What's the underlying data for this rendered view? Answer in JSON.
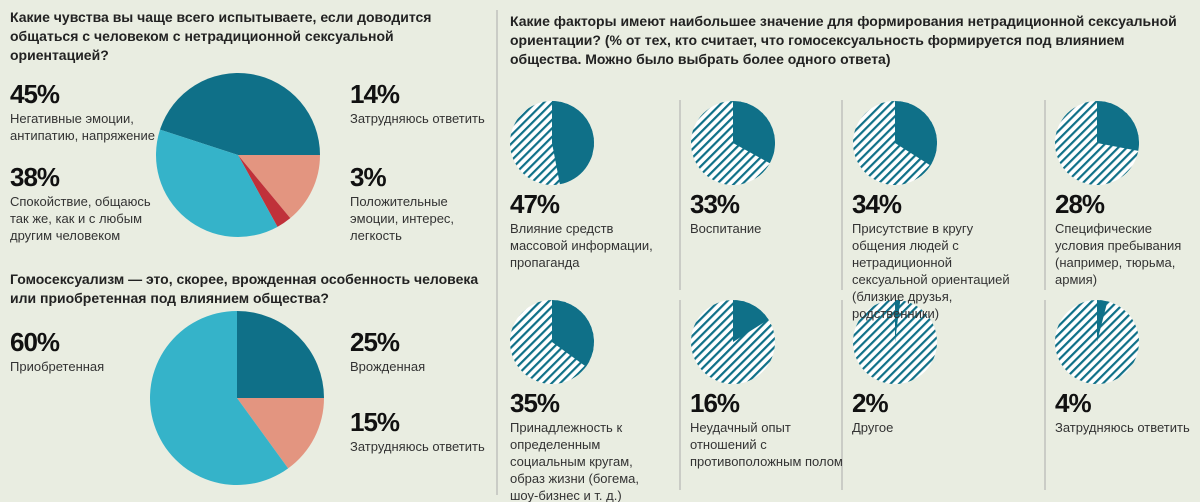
{
  "chart_data": [
    {
      "type": "pie",
      "title": "Какие чувства вы чаще всего испытываете, если доводится общаться с человеком с нетрадиционной сексуальной ориентацией?",
      "categories": [
        "Негативные эмоции, антипатию, напряжение",
        "Затрудняюсь ответить",
        "Положительные эмоции, интерес, легкость",
        "Спокойствие, общаюсь так же, как и с любым другим человеком"
      ],
      "values": [
        45,
        14,
        3,
        38
      ],
      "value_labels": [
        "45%",
        "14%",
        "3%",
        "38%"
      ],
      "colors": [
        "#0f7088",
        "#e39580",
        "#c0313a",
        "#35b3c9"
      ]
    },
    {
      "type": "pie",
      "title": "Гомосексуализм — это, скорее, врожденная особенность человека или приобретенная под влиянием общества?",
      "categories": [
        "Врожденная",
        "Затрудняюсь ответить",
        "Приобретенная"
      ],
      "values": [
        25,
        15,
        60
      ],
      "value_labels": [
        "25%",
        "15%",
        "60%"
      ],
      "colors": [
        "#0f7088",
        "#e39580",
        "#35b3c9"
      ]
    },
    {
      "type": "pie_grid",
      "title": "Какие факторы имеют наибольшее значение для формирования нетрадиционной сексуальной ориентации? (% от тех, кто считает, что гомосексуальность формируется под влиянием общества. Можно было выбрать более одного ответа)",
      "categories": [
        "Влияние средств массовой информации, пропаганда",
        "Воспитание",
        "Присутствие в кругу общения людей с нетрадиционной сексуальной ориентацией (близкие друзья, родственники)",
        "Специфические условия пребывания (например, тюрьма, армия)",
        "Принадлежность к определенным социальным кругам, образ жизни (богема, шоу-бизнес и т. д.)",
        "Неудачный опыт отношений с противоположным полом",
        "Другое",
        "Затрудняюсь ответить"
      ],
      "values": [
        47,
        33,
        34,
        28,
        35,
        16,
        2,
        4
      ],
      "value_labels": [
        "47%",
        "33%",
        "34%",
        "28%",
        "35%",
        "16%",
        "2%",
        "4%"
      ],
      "color": "#0f7088"
    }
  ]
}
